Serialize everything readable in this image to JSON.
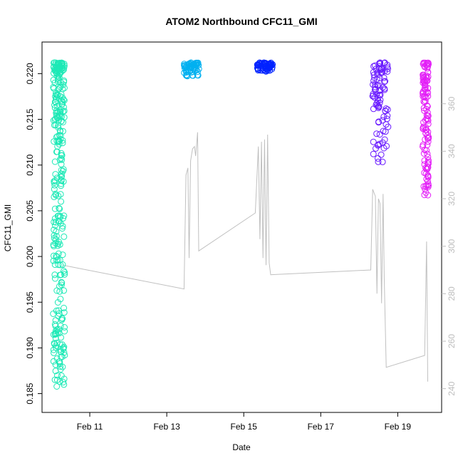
{
  "chart_data": {
    "type": "scatter",
    "title": "ATOM2 Northbound CFC11_GMI",
    "xlabel": "Date",
    "ylabel": "CFC11_GMI",
    "y2label": "",
    "xlim": [
      10.0,
      19.9
    ],
    "ylim": [
      0.1845,
      0.2219
    ],
    "y2lim": [
      236.0,
      380.0
    ],
    "x_ticks": [
      {
        "value": 11,
        "label": "Feb 11"
      },
      {
        "value": 13,
        "label": "Feb 13"
      },
      {
        "value": 15,
        "label": "Feb 15"
      },
      {
        "value": 17,
        "label": "Feb 17"
      },
      {
        "value": 19,
        "label": "Feb 19"
      }
    ],
    "y_ticks": [
      0.185,
      0.19,
      0.195,
      0.2,
      0.205,
      0.21,
      0.215,
      0.22
    ],
    "y_tick_labels": [
      "0.185",
      "0.190",
      "0.195",
      "0.200",
      "0.205",
      "0.210",
      "0.215",
      "0.220"
    ],
    "y2_ticks": [
      240,
      260,
      280,
      300,
      320,
      340,
      360
    ],
    "y2_tick_labels": [
      "240",
      "260",
      "280",
      "300",
      "320",
      "340",
      "360"
    ],
    "grid": false,
    "legend": "none",
    "series": [
      {
        "color": "#1de9b6",
        "x_range": [
          10.05,
          10.35
        ],
        "y_min": 0.1856,
        "y_max": 0.2212
      },
      {
        "color": "#00b0f0",
        "x_range": [
          13.45,
          13.85
        ],
        "y_min": 0.2197,
        "y_max": 0.2212
      },
      {
        "color": "#0022ff",
        "x_range": [
          15.35,
          15.75
        ],
        "y_min": 0.2202,
        "y_max": 0.2212
      },
      {
        "color": "#6a1bff",
        "x_range": [
          18.35,
          18.75
        ],
        "y_min": 0.2101,
        "y_max": 0.2212
      },
      {
        "color": "#e31ff7",
        "x_range": [
          19.65,
          19.8
        ],
        "y_min": 0.2064,
        "y_max": 0.2212
      }
    ],
    "altitude_line": {
      "color": "#c0c0c0",
      "axis": "y2",
      "points": [
        [
          10.3,
          292
        ],
        [
          13.45,
          282
        ],
        [
          13.5,
          330
        ],
        [
          13.55,
          333
        ],
        [
          13.58,
          295
        ],
        [
          13.62,
          336
        ],
        [
          13.67,
          341
        ],
        [
          13.72,
          342
        ],
        [
          13.75,
          338
        ],
        [
          13.8,
          348
        ],
        [
          13.83,
          298
        ],
        [
          15.3,
          314
        ],
        [
          15.38,
          342
        ],
        [
          15.42,
          303
        ],
        [
          15.46,
          344
        ],
        [
          15.5,
          295
        ],
        [
          15.54,
          345
        ],
        [
          15.58,
          292
        ],
        [
          15.62,
          347
        ],
        [
          15.66,
          293
        ],
        [
          15.7,
          288
        ],
        [
          18.3,
          290
        ],
        [
          18.35,
          324
        ],
        [
          18.42,
          321
        ],
        [
          18.46,
          280
        ],
        [
          18.5,
          320
        ],
        [
          18.54,
          318
        ],
        [
          18.58,
          276
        ],
        [
          18.62,
          322
        ],
        [
          18.65,
          287
        ],
        [
          18.7,
          249
        ],
        [
          19.7,
          254
        ],
        [
          19.75,
          302
        ],
        [
          19.78,
          243
        ]
      ]
    }
  }
}
